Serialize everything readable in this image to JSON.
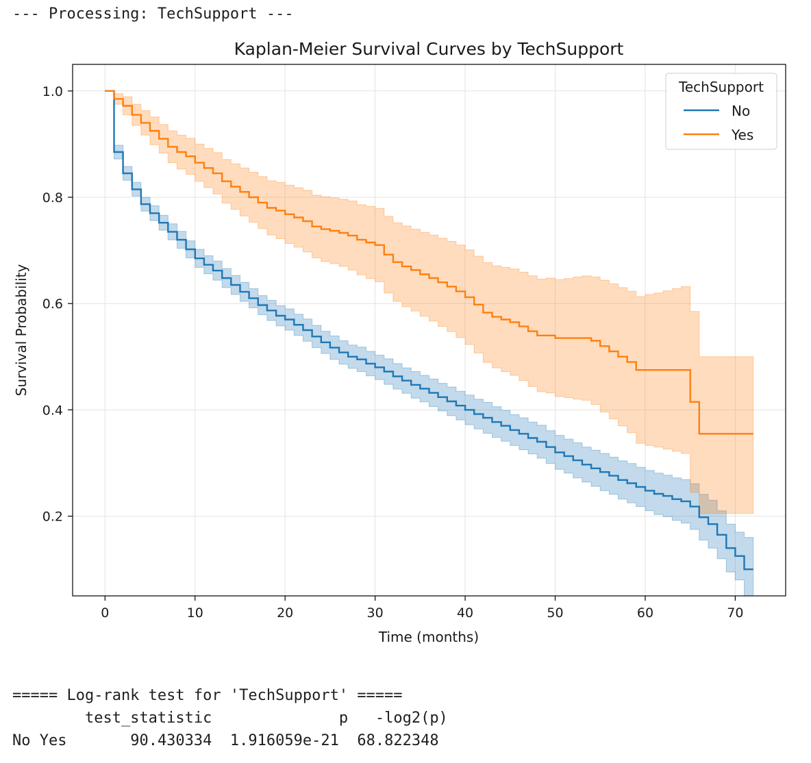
{
  "output": {
    "header": "--- Processing: TechSupport ---",
    "logrank_title": "===== Log-rank test for 'TechSupport' =====",
    "logrank_columns": [
      "test_statistic",
      "p",
      "-log2(p)"
    ],
    "logrank_row": {
      "label": "No Yes",
      "test_statistic": "90.430334",
      "p": "1.916059e-21",
      "neg_log2_p": "68.822348"
    }
  },
  "chart_data": {
    "type": "line",
    "step": true,
    "title": "Kaplan-Meier Survival Curves by TechSupport",
    "xlabel": "Time (months)",
    "ylabel": "Survival Probability",
    "xlim": [
      -3.6,
      75.6
    ],
    "ylim": [
      0.05,
      1.05
    ],
    "xticks": [
      0,
      10,
      20,
      30,
      40,
      50,
      60,
      70
    ],
    "yticks": [
      0.2,
      0.4,
      0.6,
      0.8,
      1.0
    ],
    "ytick_labels": [
      "0.2",
      "0.4",
      "0.6",
      "0.8",
      "1.0"
    ],
    "grid": true,
    "legend": {
      "title": "TechSupport",
      "position": "top-right"
    },
    "series": [
      {
        "name": "No",
        "color": "#1f77b4",
        "x": [
          0,
          1,
          2,
          3,
          4,
          5,
          6,
          7,
          8,
          9,
          10,
          11,
          12,
          13,
          14,
          15,
          16,
          17,
          18,
          19,
          20,
          21,
          22,
          23,
          24,
          25,
          26,
          27,
          28,
          29,
          30,
          31,
          32,
          33,
          34,
          35,
          36,
          37,
          38,
          39,
          40,
          41,
          42,
          43,
          44,
          45,
          46,
          47,
          48,
          49,
          50,
          51,
          52,
          53,
          54,
          55,
          56,
          57,
          58,
          59,
          60,
          61,
          62,
          63,
          64,
          65,
          66,
          67,
          68,
          69,
          70,
          71,
          72
        ],
        "y": [
          1.0,
          0.885,
          0.845,
          0.815,
          0.787,
          0.77,
          0.752,
          0.735,
          0.72,
          0.702,
          0.685,
          0.673,
          0.662,
          0.648,
          0.635,
          0.622,
          0.61,
          0.597,
          0.587,
          0.577,
          0.57,
          0.56,
          0.55,
          0.538,
          0.527,
          0.517,
          0.508,
          0.5,
          0.495,
          0.487,
          0.48,
          0.472,
          0.463,
          0.455,
          0.447,
          0.44,
          0.432,
          0.424,
          0.416,
          0.408,
          0.4,
          0.392,
          0.385,
          0.377,
          0.37,
          0.362,
          0.355,
          0.347,
          0.34,
          0.33,
          0.32,
          0.313,
          0.305,
          0.297,
          0.29,
          0.283,
          0.276,
          0.268,
          0.262,
          0.255,
          0.248,
          0.242,
          0.238,
          0.232,
          0.228,
          0.218,
          0.198,
          0.185,
          0.165,
          0.14,
          0.125,
          0.1,
          0.1
        ],
        "lower": [
          1.0,
          0.872,
          0.832,
          0.802,
          0.774,
          0.756,
          0.738,
          0.72,
          0.704,
          0.686,
          0.668,
          0.656,
          0.644,
          0.63,
          0.617,
          0.604,
          0.592,
          0.579,
          0.568,
          0.558,
          0.55,
          0.54,
          0.529,
          0.517,
          0.506,
          0.495,
          0.486,
          0.478,
          0.472,
          0.464,
          0.457,
          0.448,
          0.439,
          0.431,
          0.422,
          0.415,
          0.406,
          0.398,
          0.389,
          0.381,
          0.372,
          0.364,
          0.356,
          0.348,
          0.341,
          0.333,
          0.325,
          0.317,
          0.309,
          0.299,
          0.288,
          0.281,
          0.272,
          0.264,
          0.256,
          0.248,
          0.241,
          0.232,
          0.225,
          0.218,
          0.21,
          0.203,
          0.199,
          0.192,
          0.187,
          0.175,
          0.155,
          0.14,
          0.12,
          0.095,
          0.08,
          0.05,
          0.05
        ],
        "upper": [
          1.0,
          0.898,
          0.858,
          0.828,
          0.8,
          0.784,
          0.766,
          0.75,
          0.736,
          0.718,
          0.702,
          0.69,
          0.68,
          0.666,
          0.653,
          0.64,
          0.628,
          0.615,
          0.606,
          0.596,
          0.59,
          0.58,
          0.571,
          0.559,
          0.548,
          0.539,
          0.53,
          0.522,
          0.518,
          0.51,
          0.503,
          0.496,
          0.487,
          0.479,
          0.472,
          0.465,
          0.458,
          0.45,
          0.443,
          0.435,
          0.428,
          0.42,
          0.414,
          0.406,
          0.399,
          0.391,
          0.385,
          0.377,
          0.371,
          0.361,
          0.352,
          0.345,
          0.338,
          0.33,
          0.324,
          0.318,
          0.311,
          0.304,
          0.299,
          0.292,
          0.286,
          0.281,
          0.277,
          0.272,
          0.269,
          0.261,
          0.241,
          0.23,
          0.21,
          0.185,
          0.17,
          0.16,
          0.16
        ]
      },
      {
        "name": "Yes",
        "color": "#ff7f0e",
        "x": [
          0,
          1,
          2,
          3,
          4,
          5,
          6,
          7,
          8,
          9,
          10,
          11,
          12,
          13,
          14,
          15,
          16,
          17,
          18,
          19,
          20,
          21,
          22,
          23,
          24,
          25,
          26,
          27,
          28,
          29,
          30,
          31,
          32,
          33,
          34,
          35,
          36,
          37,
          38,
          39,
          40,
          41,
          42,
          43,
          44,
          45,
          46,
          47,
          48,
          49,
          50,
          51,
          52,
          53,
          54,
          55,
          56,
          57,
          58,
          59,
          60,
          61,
          62,
          63,
          64,
          65,
          66,
          67,
          68,
          69,
          70,
          71,
          72
        ],
        "y": [
          1.0,
          0.985,
          0.972,
          0.955,
          0.94,
          0.925,
          0.91,
          0.895,
          0.885,
          0.877,
          0.865,
          0.855,
          0.845,
          0.83,
          0.82,
          0.81,
          0.8,
          0.79,
          0.78,
          0.775,
          0.768,
          0.762,
          0.755,
          0.745,
          0.74,
          0.737,
          0.733,
          0.728,
          0.72,
          0.715,
          0.71,
          0.692,
          0.678,
          0.67,
          0.663,
          0.655,
          0.648,
          0.64,
          0.632,
          0.623,
          0.612,
          0.598,
          0.583,
          0.575,
          0.57,
          0.565,
          0.557,
          0.548,
          0.54,
          0.54,
          0.535,
          0.535,
          0.535,
          0.535,
          0.53,
          0.52,
          0.51,
          0.5,
          0.49,
          0.475,
          0.475,
          0.475,
          0.475,
          0.475,
          0.475,
          0.415,
          0.355,
          0.355,
          0.355,
          0.355,
          0.355,
          0.355,
          0.355
        ],
        "lower": [
          1.0,
          0.975,
          0.955,
          0.935,
          0.917,
          0.899,
          0.883,
          0.865,
          0.853,
          0.843,
          0.83,
          0.818,
          0.806,
          0.789,
          0.777,
          0.765,
          0.753,
          0.741,
          0.729,
          0.722,
          0.713,
          0.706,
          0.697,
          0.686,
          0.679,
          0.675,
          0.67,
          0.663,
          0.654,
          0.647,
          0.641,
          0.62,
          0.604,
          0.594,
          0.586,
          0.576,
          0.567,
          0.557,
          0.547,
          0.536,
          0.523,
          0.507,
          0.489,
          0.479,
          0.472,
          0.465,
          0.455,
          0.444,
          0.434,
          0.432,
          0.425,
          0.423,
          0.42,
          0.418,
          0.41,
          0.396,
          0.383,
          0.37,
          0.357,
          0.337,
          0.333,
          0.33,
          0.326,
          0.322,
          0.318,
          0.245,
          0.205,
          0.205,
          0.205,
          0.205,
          0.205,
          0.205,
          0.205
        ],
        "upper": [
          1.0,
          0.995,
          0.989,
          0.975,
          0.963,
          0.951,
          0.937,
          0.925,
          0.917,
          0.911,
          0.9,
          0.892,
          0.884,
          0.871,
          0.863,
          0.855,
          0.847,
          0.839,
          0.831,
          0.828,
          0.823,
          0.818,
          0.813,
          0.804,
          0.801,
          0.799,
          0.796,
          0.793,
          0.786,
          0.783,
          0.779,
          0.764,
          0.752,
          0.746,
          0.74,
          0.734,
          0.729,
          0.723,
          0.717,
          0.71,
          0.701,
          0.689,
          0.677,
          0.671,
          0.668,
          0.665,
          0.659,
          0.652,
          0.646,
          0.648,
          0.645,
          0.647,
          0.65,
          0.652,
          0.65,
          0.644,
          0.637,
          0.63,
          0.623,
          0.613,
          0.617,
          0.62,
          0.624,
          0.628,
          0.632,
          0.585,
          0.5,
          0.5,
          0.5,
          0.5,
          0.5,
          0.5,
          0.5
        ]
      }
    ]
  }
}
